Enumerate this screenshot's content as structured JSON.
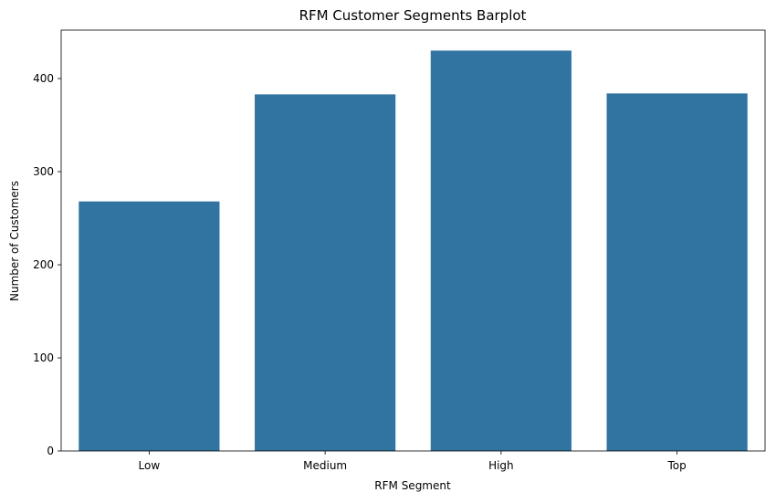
{
  "chart_data": {
    "type": "bar",
    "title": "RFM Customer Segments Barplot",
    "xlabel": "RFM Segment",
    "ylabel": "Number of Customers",
    "categories": [
      "Low",
      "Medium",
      "High",
      "Top"
    ],
    "values": [
      268,
      383,
      430,
      384
    ],
    "ylim": [
      0,
      452
    ],
    "yticks": [
      0,
      100,
      200,
      300,
      400
    ],
    "ytick_labels": [
      "0",
      "100",
      "200",
      "300",
      "400"
    ],
    "grid": false,
    "legend": "none",
    "bar_color": "#3274a1",
    "axis_color": "#000000"
  }
}
